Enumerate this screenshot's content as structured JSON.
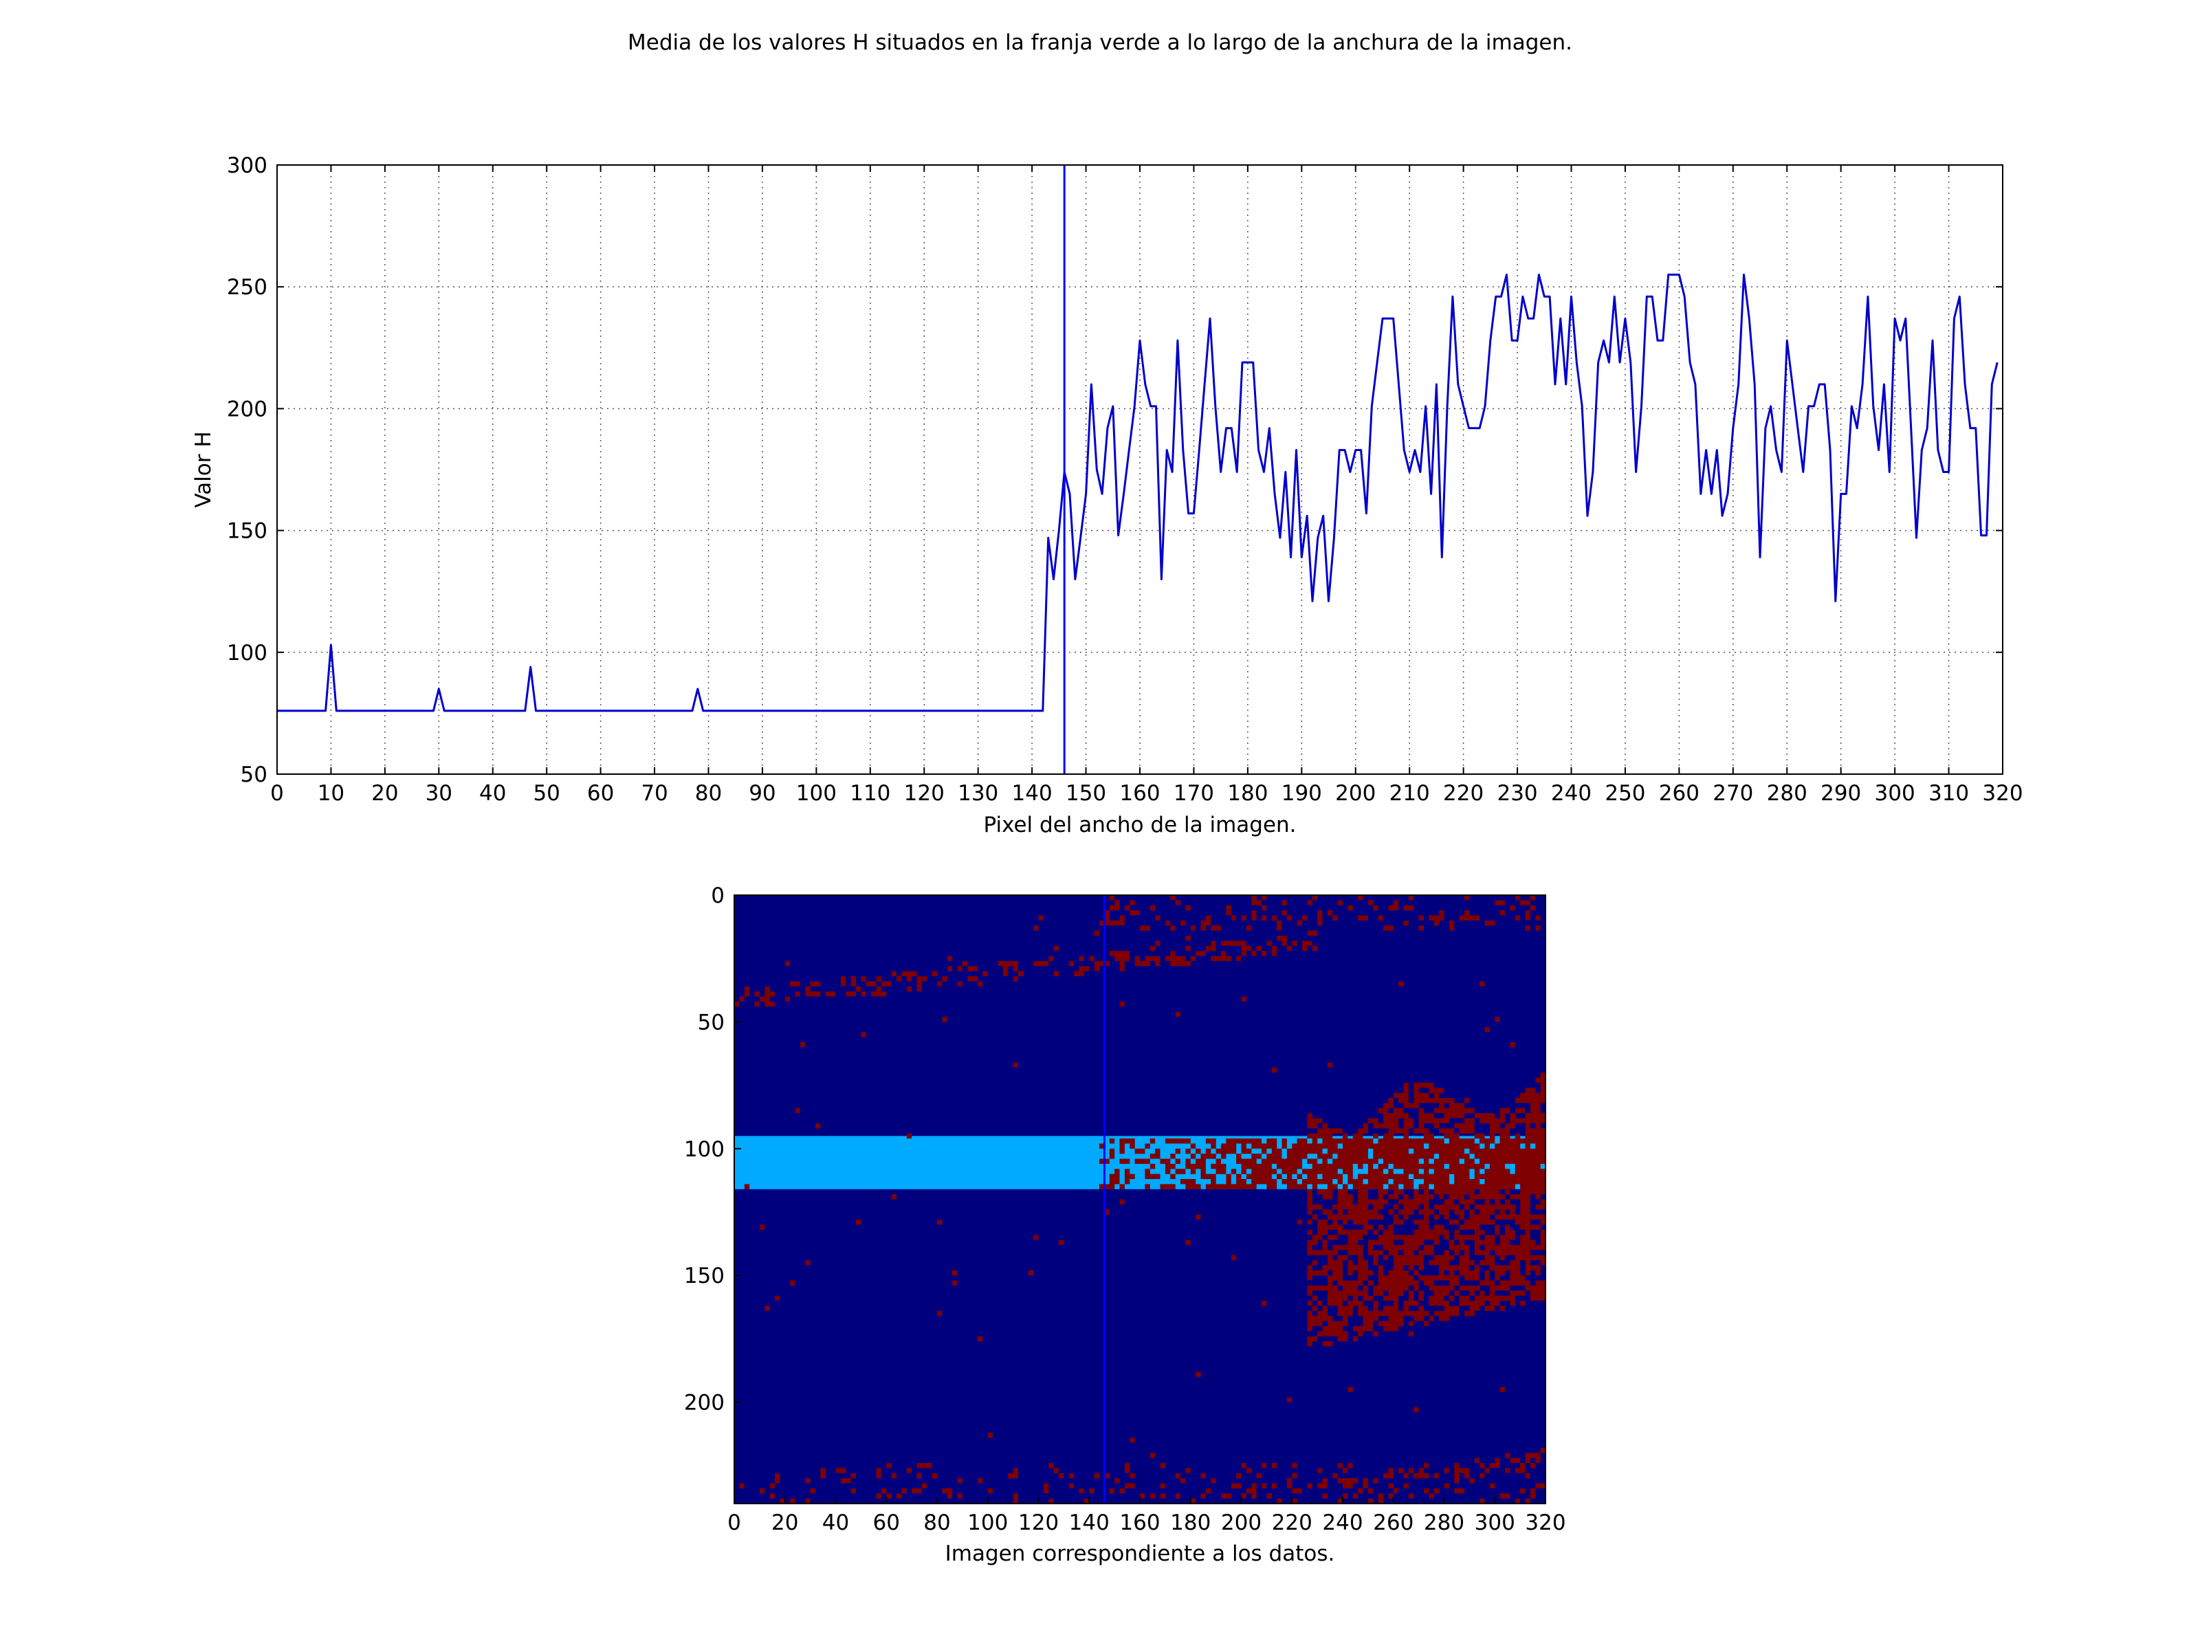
{
  "suptitle": "Media de los valores H situados en la franja verde a lo largo de la anchura de la imagen.",
  "colors": {
    "line": "#0000cc",
    "marker_line": "#0000ff",
    "grid": "#555555",
    "heatmap_background": "#00007f",
    "heatmap_stripe": "#00aaff",
    "heatmap_hot": "#7f0000"
  },
  "chart_data": [
    {
      "type": "line",
      "title": "",
      "xlabel": "Pixel del ancho de la imagen.",
      "ylabel": "Valor H",
      "xlim": [
        0,
        320
      ],
      "ylim": [
        50,
        300
      ],
      "xticks": [
        0,
        10,
        20,
        30,
        40,
        50,
        60,
        70,
        80,
        90,
        100,
        110,
        120,
        130,
        140,
        150,
        160,
        170,
        180,
        190,
        200,
        210,
        220,
        230,
        240,
        250,
        260,
        270,
        280,
        290,
        300,
        310,
        320
      ],
      "yticks": [
        50,
        100,
        150,
        200,
        250,
        300
      ],
      "grid": true,
      "legend": "none",
      "vline_x": 146,
      "series": [
        {
          "x": [
            0,
            9,
            10,
            11,
            29,
            30,
            31,
            46,
            47,
            48,
            77,
            78,
            79,
            142,
            143,
            144,
            145,
            146,
            147,
            148,
            149,
            150,
            151,
            152,
            153,
            154,
            155,
            156,
            157,
            158,
            159,
            160,
            161,
            162,
            163,
            164,
            165,
            166,
            167,
            168,
            169,
            170,
            171,
            172,
            173,
            174,
            175,
            176,
            177,
            178,
            179,
            180,
            181,
            182,
            183,
            184,
            185,
            186,
            187,
            188,
            189,
            190,
            191,
            192,
            193,
            194,
            195,
            196,
            197,
            198,
            199,
            200,
            201,
            202,
            203,
            204,
            205,
            206,
            207,
            208,
            209,
            210,
            211,
            212,
            213,
            214,
            215,
            216,
            217,
            218,
            219,
            220,
            221,
            222,
            223,
            224,
            225,
            226,
            227,
            228,
            229,
            230,
            231,
            232,
            233,
            234,
            235,
            236,
            237,
            238,
            239,
            240,
            241,
            242,
            243,
            244,
            245,
            246,
            247,
            248,
            249,
            250,
            251,
            252,
            253,
            254,
            255,
            256,
            257,
            258,
            259,
            260,
            261,
            262,
            263,
            264,
            265,
            266,
            267,
            268,
            269,
            270,
            271,
            272,
            273,
            274,
            275,
            276,
            277,
            278,
            279,
            280,
            281,
            282,
            283,
            284,
            285,
            286,
            287,
            288,
            289,
            290,
            291,
            292,
            293,
            294,
            295,
            296,
            297,
            298,
            299,
            300,
            301,
            302,
            303,
            304,
            305,
            306,
            307,
            308,
            309,
            310,
            311,
            312,
            313,
            314,
            315,
            316,
            317,
            318,
            319
          ],
          "values": [
            76,
            76,
            103,
            76,
            76,
            85,
            76,
            76,
            94,
            76,
            76,
            85,
            76,
            76,
            147,
            130,
            150,
            174,
            165,
            130,
            147,
            165,
            210,
            175,
            165,
            192,
            201,
            148,
            165,
            183,
            201,
            228,
            210,
            201,
            201,
            130,
            183,
            174,
            228,
            183,
            157,
            157,
            183,
            210,
            237,
            201,
            174,
            192,
            192,
            174,
            219,
            219,
            219,
            183,
            174,
            192,
            165,
            147,
            174,
            139,
            183,
            139,
            156,
            121,
            147,
            156,
            121,
            147,
            183,
            183,
            174,
            183,
            183,
            157,
            201,
            219,
            237,
            237,
            237,
            210,
            183,
            174,
            183,
            174,
            201,
            165,
            210,
            139,
            201,
            246,
            210,
            201,
            192,
            192,
            192,
            201,
            228,
            246,
            246,
            255,
            228,
            228,
            246,
            237,
            237,
            255,
            246,
            246,
            210,
            237,
            210,
            246,
            219,
            201,
            156,
            174,
            219,
            228,
            219,
            246,
            219,
            237,
            219,
            174,
            201,
            246,
            246,
            228,
            228,
            255,
            255,
            255,
            246,
            219,
            210,
            165,
            183,
            165,
            183,
            156,
            165,
            192,
            210,
            255,
            237,
            210,
            139,
            192,
            201,
            183,
            174,
            228,
            210,
            192,
            174,
            201,
            201,
            210,
            210,
            183,
            121,
            165,
            165,
            201,
            192,
            210,
            246,
            201,
            183,
            210,
            174,
            237,
            228,
            237,
            192,
            147,
            183,
            192,
            228,
            183,
            174,
            174,
            237,
            246,
            210,
            192,
            192,
            148,
            148,
            210,
            219
          ]
        }
      ]
    },
    {
      "type": "heatmap",
      "title": "",
      "xlabel": "Imagen correspondiente a los datos.",
      "ylabel": "",
      "xlim": [
        0,
        320
      ],
      "ylim": [
        240,
        0
      ],
      "xticks": [
        0,
        20,
        40,
        60,
        80,
        100,
        120,
        140,
        160,
        180,
        200,
        220,
        240,
        260,
        280,
        300,
        320
      ],
      "yticks": [
        0,
        50,
        100,
        150,
        200
      ],
      "vline_x": 146,
      "stripe_rows": [
        95,
        116
      ],
      "hot_region": {
        "stripe_speckle_start_x": 143,
        "blob_x_range": [
          225,
          320
        ],
        "blob_y_range": [
          75,
          178
        ]
      }
    }
  ]
}
